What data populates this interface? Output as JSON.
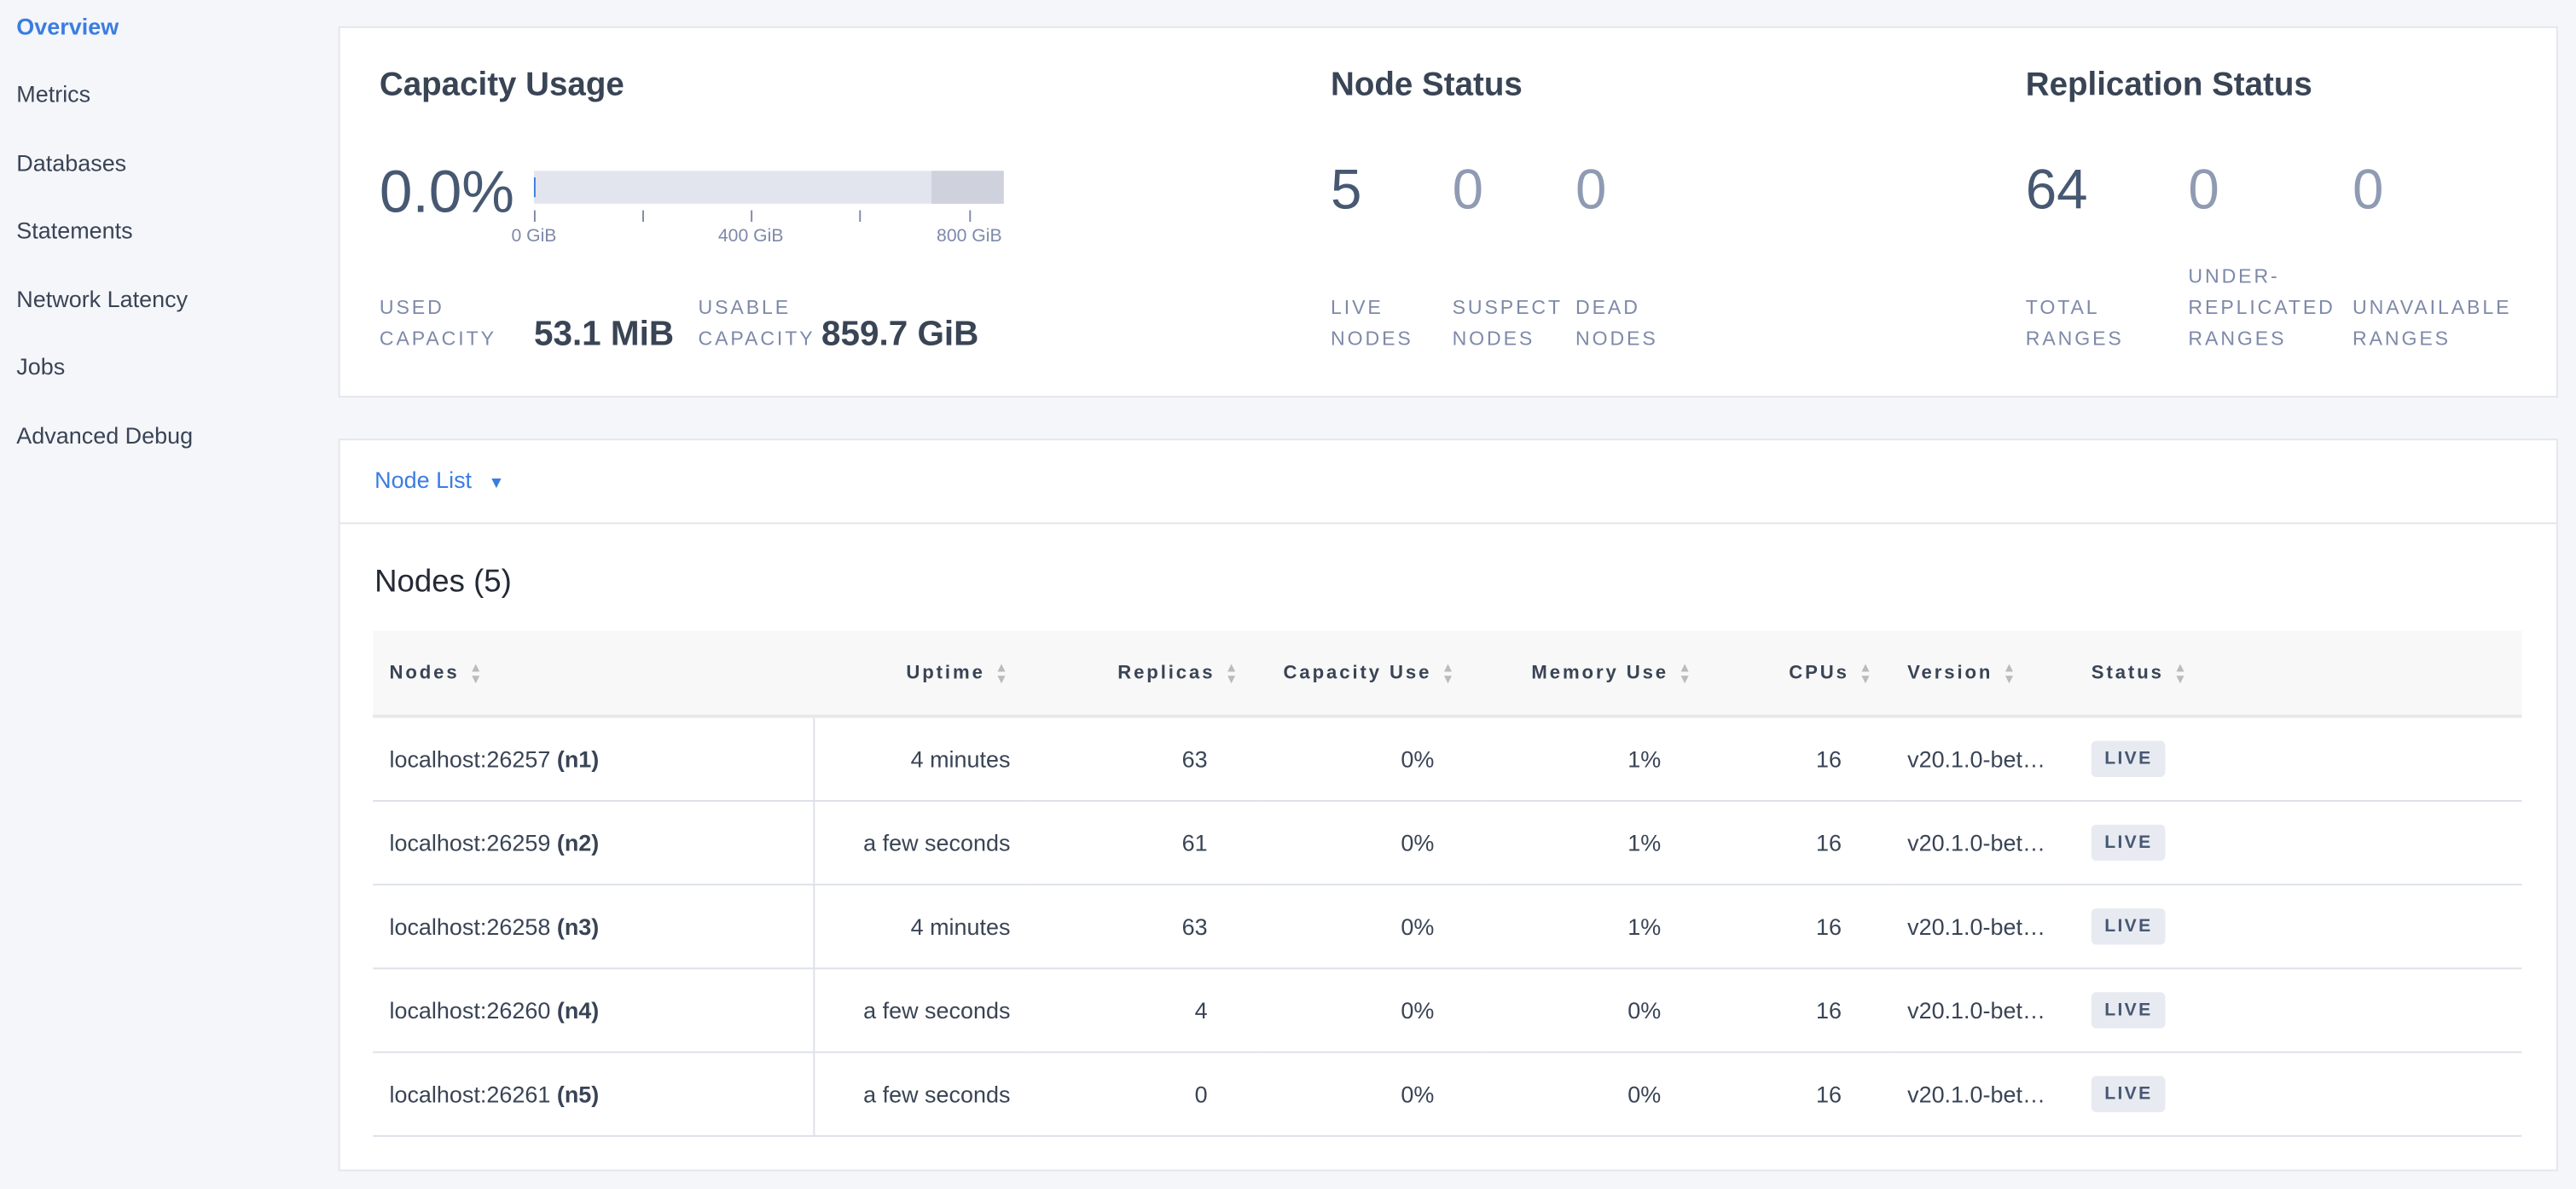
{
  "sidebar": {
    "items": [
      {
        "label": "Overview",
        "active": true
      },
      {
        "label": "Metrics"
      },
      {
        "label": "Databases"
      },
      {
        "label": "Statements"
      },
      {
        "label": "Network Latency"
      },
      {
        "label": "Jobs"
      },
      {
        "label": "Advanced Debug"
      }
    ]
  },
  "capacity": {
    "title": "Capacity Usage",
    "percent": "0.0%",
    "usage_fraction": 0.0,
    "ticks": [
      "0 GiB",
      "400 GiB",
      "800 GiB"
    ],
    "used_label": [
      "Used",
      "Capacity"
    ],
    "used_value": "53.1 MiB",
    "usable_label": [
      "Usable",
      "Capacity"
    ],
    "usable_value": "859.7 GiB"
  },
  "node_status": {
    "title": "Node Status",
    "live": "5",
    "live_label": [
      "Live",
      "Nodes"
    ],
    "suspect": "0",
    "suspect_label": [
      "Suspect",
      "Nodes"
    ],
    "dead": "0",
    "dead_label": [
      "Dead",
      "Nodes"
    ]
  },
  "replication": {
    "title": "Replication Status",
    "total": "64",
    "total_label": [
      "Total",
      "Ranges"
    ],
    "under": "0",
    "under_label": [
      "Under-",
      "Replicated",
      "Ranges"
    ],
    "unavail": "0",
    "unavail_label": [
      "Unavailable",
      "Ranges"
    ]
  },
  "node_list": {
    "dropdown": "Node List",
    "title": "Nodes (5)",
    "columns": [
      "Nodes",
      "Uptime",
      "Replicas",
      "Capacity Use",
      "Memory Use",
      "CPUs",
      "Version",
      "Status"
    ],
    "rows": [
      {
        "host": "localhost:26257",
        "id": "(n1)",
        "uptime": "4 minutes",
        "replicas": "63",
        "capacity": "0%",
        "memory": "1%",
        "cpus": "16",
        "version": "v20.1.0-bet…",
        "status": "LIVE"
      },
      {
        "host": "localhost:26259",
        "id": "(n2)",
        "uptime": "a few seconds",
        "replicas": "61",
        "capacity": "0%",
        "memory": "1%",
        "cpus": "16",
        "version": "v20.1.0-bet…",
        "status": "LIVE"
      },
      {
        "host": "localhost:26258",
        "id": "(n3)",
        "uptime": "4 minutes",
        "replicas": "63",
        "capacity": "0%",
        "memory": "1%",
        "cpus": "16",
        "version": "v20.1.0-bet…",
        "status": "LIVE"
      },
      {
        "host": "localhost:26260",
        "id": "(n4)",
        "uptime": "a few seconds",
        "replicas": "4",
        "capacity": "0%",
        "memory": "0%",
        "cpus": "16",
        "version": "v20.1.0-bet…",
        "status": "LIVE"
      },
      {
        "host": "localhost:26261",
        "id": "(n5)",
        "uptime": "a few seconds",
        "replicas": "0",
        "capacity": "0%",
        "memory": "0%",
        "cpus": "16",
        "version": "v20.1.0-bet…",
        "status": "LIVE"
      }
    ]
  },
  "colors": {
    "accent": "#3a7de1",
    "text": "#394455"
  }
}
